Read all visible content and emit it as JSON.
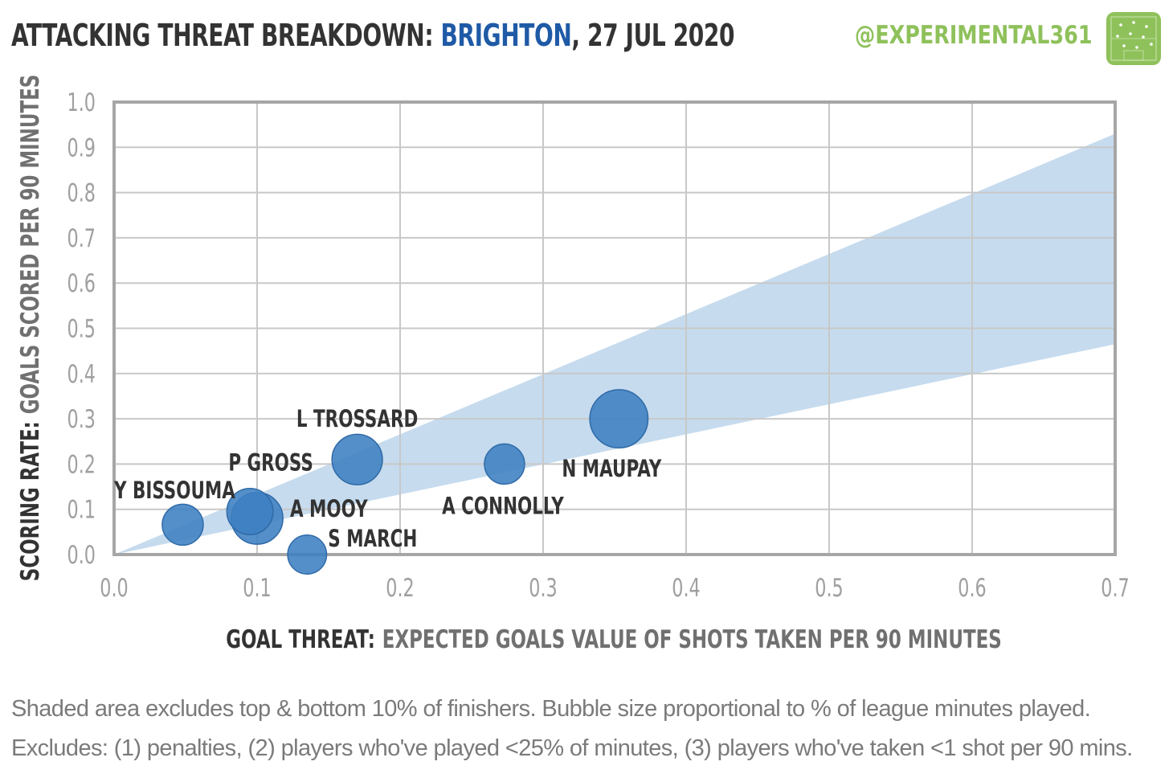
{
  "header": {
    "title_prefix": "ATTACKING THREAT BREAKDOWN: ",
    "team": "BRIGHTON",
    "title_suffix": ", 27 JUL 2020",
    "handle": "@EXPERIMENTAL361"
  },
  "colors": {
    "accent_team": "#1f5aa6",
    "handle": "#8fc15b",
    "bubble": "#3d7fc1",
    "band": "#c6dbee",
    "grid": "#c8c8c8",
    "frame": "#a6a6a6",
    "tick": "#a0a0a0",
    "label": "#333333"
  },
  "chart_data": {
    "type": "scatter",
    "title": "ATTACKING THREAT BREAKDOWN: BRIGHTON, 27 JUL 2020",
    "xlabel_bold": "GOAL THREAT:",
    "xlabel_rest": "EXPECTED GOALS VALUE OF SHOTS TAKEN PER 90 MINUTES",
    "ylabel_bold": "SCORING RATE:",
    "ylabel_rest": "GOALS SCORED PER 90 MINUTES",
    "xlim": [
      0,
      0.7
    ],
    "ylim": [
      0,
      1.0
    ],
    "x_ticks": [
      "0.0",
      "0.1",
      "0.2",
      "0.3",
      "0.4",
      "0.5",
      "0.6",
      "0.7"
    ],
    "y_ticks": [
      "0.0",
      "0.1",
      "0.2",
      "0.3",
      "0.4",
      "0.5",
      "0.6",
      "0.7",
      "0.8",
      "0.9",
      "1.0"
    ],
    "grid": true,
    "band": {
      "x_end": 0.7,
      "upper_at_end": 0.93,
      "lower_at_end": 0.465
    },
    "points": [
      {
        "label": "Y BISSOUMA",
        "x": 0.048,
        "y": 0.066,
        "minutes_share": 0.41
      },
      {
        "label": "P GROSS",
        "x": 0.095,
        "y": 0.095,
        "minutes_share": 0.55
      },
      {
        "label": "A MOOY",
        "x": 0.1,
        "y": 0.08,
        "minutes_share": 0.72
      },
      {
        "label": "S MARCH",
        "x": 0.135,
        "y": 0.0,
        "minutes_share": 0.36
      },
      {
        "label": "L TROSSARD",
        "x": 0.17,
        "y": 0.21,
        "minutes_share": 0.68
      },
      {
        "label": "A CONNOLLY",
        "x": 0.273,
        "y": 0.2,
        "minutes_share": 0.39
      },
      {
        "label": "N MAUPAY",
        "x": 0.353,
        "y": 0.3,
        "minutes_share": 0.95
      }
    ]
  },
  "notes": {
    "line1": "Shaded area excludes top & bottom 10% of finishers. Bubble size proportional to % of league minutes played.",
    "line2": "Excludes: (1) penalties, (2) players who've played <25% of minutes, (3) players who've taken <1 shot per 90 mins."
  }
}
